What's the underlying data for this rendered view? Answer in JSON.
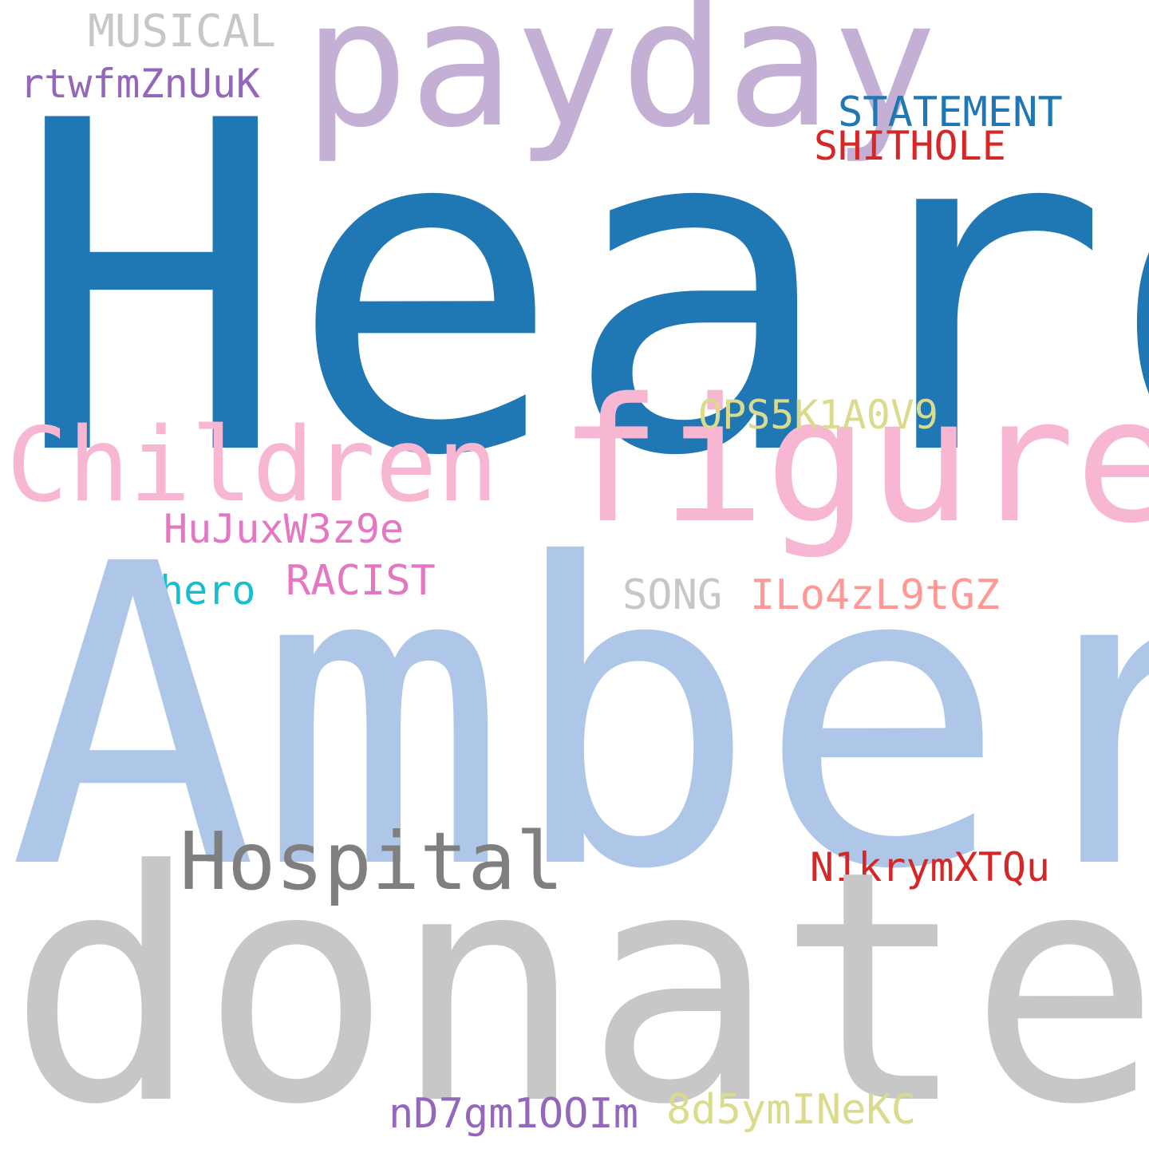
{
  "words": {
    "heard": {
      "text": "Heard",
      "color": "#1f77b4"
    },
    "amber": {
      "text": "Amber",
      "color": "#aec7e8"
    },
    "donates": {
      "text": "donates",
      "color": "#c7c7c7"
    },
    "payday": {
      "text": "payday",
      "color": "#c5b0d5"
    },
    "figure": {
      "text": "figure",
      "color": "#f7b6d2"
    },
    "children": {
      "text": "Children",
      "color": "#f7b6d2"
    },
    "hospital": {
      "text": "Hospital",
      "color": "#7f7f7f"
    },
    "musical": {
      "text": "MUSICAL",
      "color": "#c7c7c7"
    },
    "rtwf": {
      "text": "rtwfmZnUuK",
      "color": "#9467bd"
    },
    "statement": {
      "text": "STATEMENT",
      "color": "#1f77b4"
    },
    "shithole": {
      "text": "SHITHOLE",
      "color": "#d62728"
    },
    "ops": {
      "text": "OPS5K1A0V9",
      "color": "#dbdb8d"
    },
    "hujux": {
      "text": "HuJuxW3z9e",
      "color": "#e377c2"
    },
    "hero": {
      "text": "hero",
      "color": "#17becf"
    },
    "racist": {
      "text": "RACIST",
      "color": "#e377c2"
    },
    "song": {
      "text": "SONG",
      "color": "#c7c7c7"
    },
    "ilo": {
      "text": "ILo4zL9tGZ",
      "color": "#ff9896"
    },
    "n1kr": {
      "text": "N1krymXTQu",
      "color": "#d62728"
    },
    "nd7": {
      "text": "nD7gm1OOIm",
      "color": "#9467bd"
    },
    "d5": {
      "text": "8d5ymINeKC",
      "color": "#dbdb8d"
    }
  }
}
